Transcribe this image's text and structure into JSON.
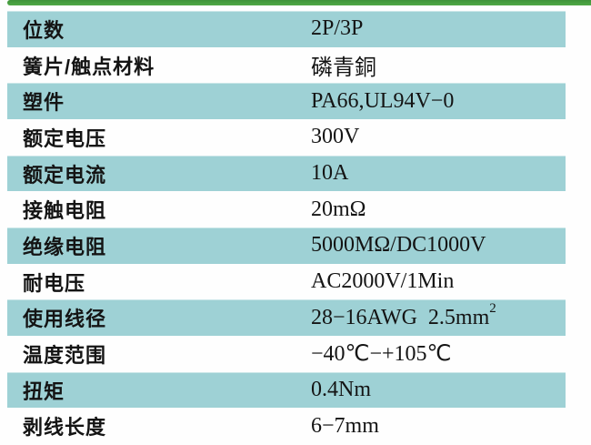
{
  "page": {
    "background_color": "#fefefe",
    "accent_bar_color": "#4ba345",
    "row_highlight_color": "#9ed1d5",
    "text_color": "#141414"
  },
  "table": {
    "rows": [
      {
        "label": "位数",
        "value": "2P/3P",
        "highlighted": true
      },
      {
        "label": "簧片/触点材料",
        "value": "磷青銅",
        "highlighted": false
      },
      {
        "label": "塑件",
        "value": "PA66,UL94V−0",
        "highlighted": true
      },
      {
        "label": "额定电压",
        "value": "300V",
        "highlighted": false
      },
      {
        "label": "额定电流",
        "value": "10A",
        "highlighted": true
      },
      {
        "label": "接触电阻",
        "value": "20mΩ",
        "highlighted": false
      },
      {
        "label": "绝缘电阻",
        "value": "5000MΩ/DC1000V",
        "highlighted": true
      },
      {
        "label": "耐电压",
        "value": "AC2000V/1Min",
        "highlighted": false
      },
      {
        "label": "使用线径",
        "value": "28−16AWG  2.5mm",
        "value_sup": "2",
        "highlighted": true
      },
      {
        "label": "温度范围",
        "value": "−40℃−+105℃",
        "highlighted": false
      },
      {
        "label": "扭矩",
        "value": "0.4Nm",
        "highlighted": true
      },
      {
        "label": "剥线长度",
        "value": "6−7mm",
        "highlighted": false
      }
    ]
  }
}
